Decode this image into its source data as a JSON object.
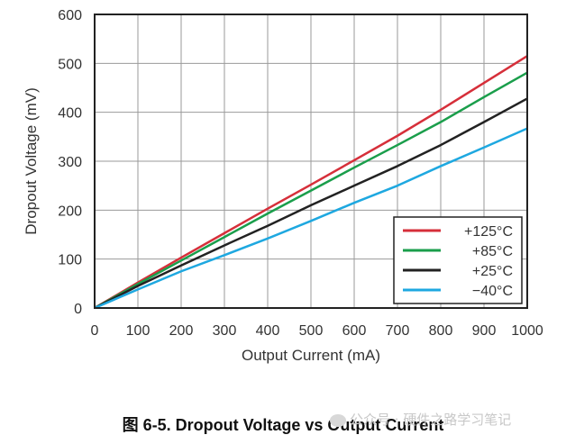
{
  "chart_data": {
    "type": "line",
    "xlabel": "Output Current (mA)",
    "ylabel": "Dropout Voltage (mV)",
    "xlim": [
      0,
      1000
    ],
    "ylim": [
      0,
      600
    ],
    "x_ticks": [
      0,
      100,
      200,
      300,
      400,
      500,
      600,
      700,
      800,
      900,
      1000
    ],
    "y_ticks": [
      0,
      100,
      200,
      300,
      400,
      500,
      600
    ],
    "grid": true,
    "legend_position": "bottom-right",
    "x": [
      0,
      100,
      200,
      300,
      400,
      500,
      600,
      700,
      800,
      900,
      1000
    ],
    "series": [
      {
        "name": "+125°C",
        "color": "#d62f3a",
        "values": [
          0,
          52,
          103,
          153,
          203,
          252,
          302,
          352,
          405,
          460,
          515
        ]
      },
      {
        "name": "+85°C",
        "color": "#1a9e4b",
        "values": [
          0,
          49,
          97,
          145,
          193,
          240,
          287,
          333,
          380,
          431,
          481
        ]
      },
      {
        "name": "+25°C",
        "color": "#222222",
        "values": [
          0,
          45,
          87,
          128,
          168,
          210,
          250,
          290,
          333,
          380,
          428
        ]
      },
      {
        "name": "−40°C",
        "color": "#1ea8e0",
        "values": [
          0,
          38,
          75,
          108,
          142,
          178,
          215,
          250,
          290,
          328,
          367
        ]
      }
    ]
  },
  "caption": "图 6-5. Dropout Voltage vs Output Current",
  "watermark": "公众号 · 硬件之路学习笔记"
}
